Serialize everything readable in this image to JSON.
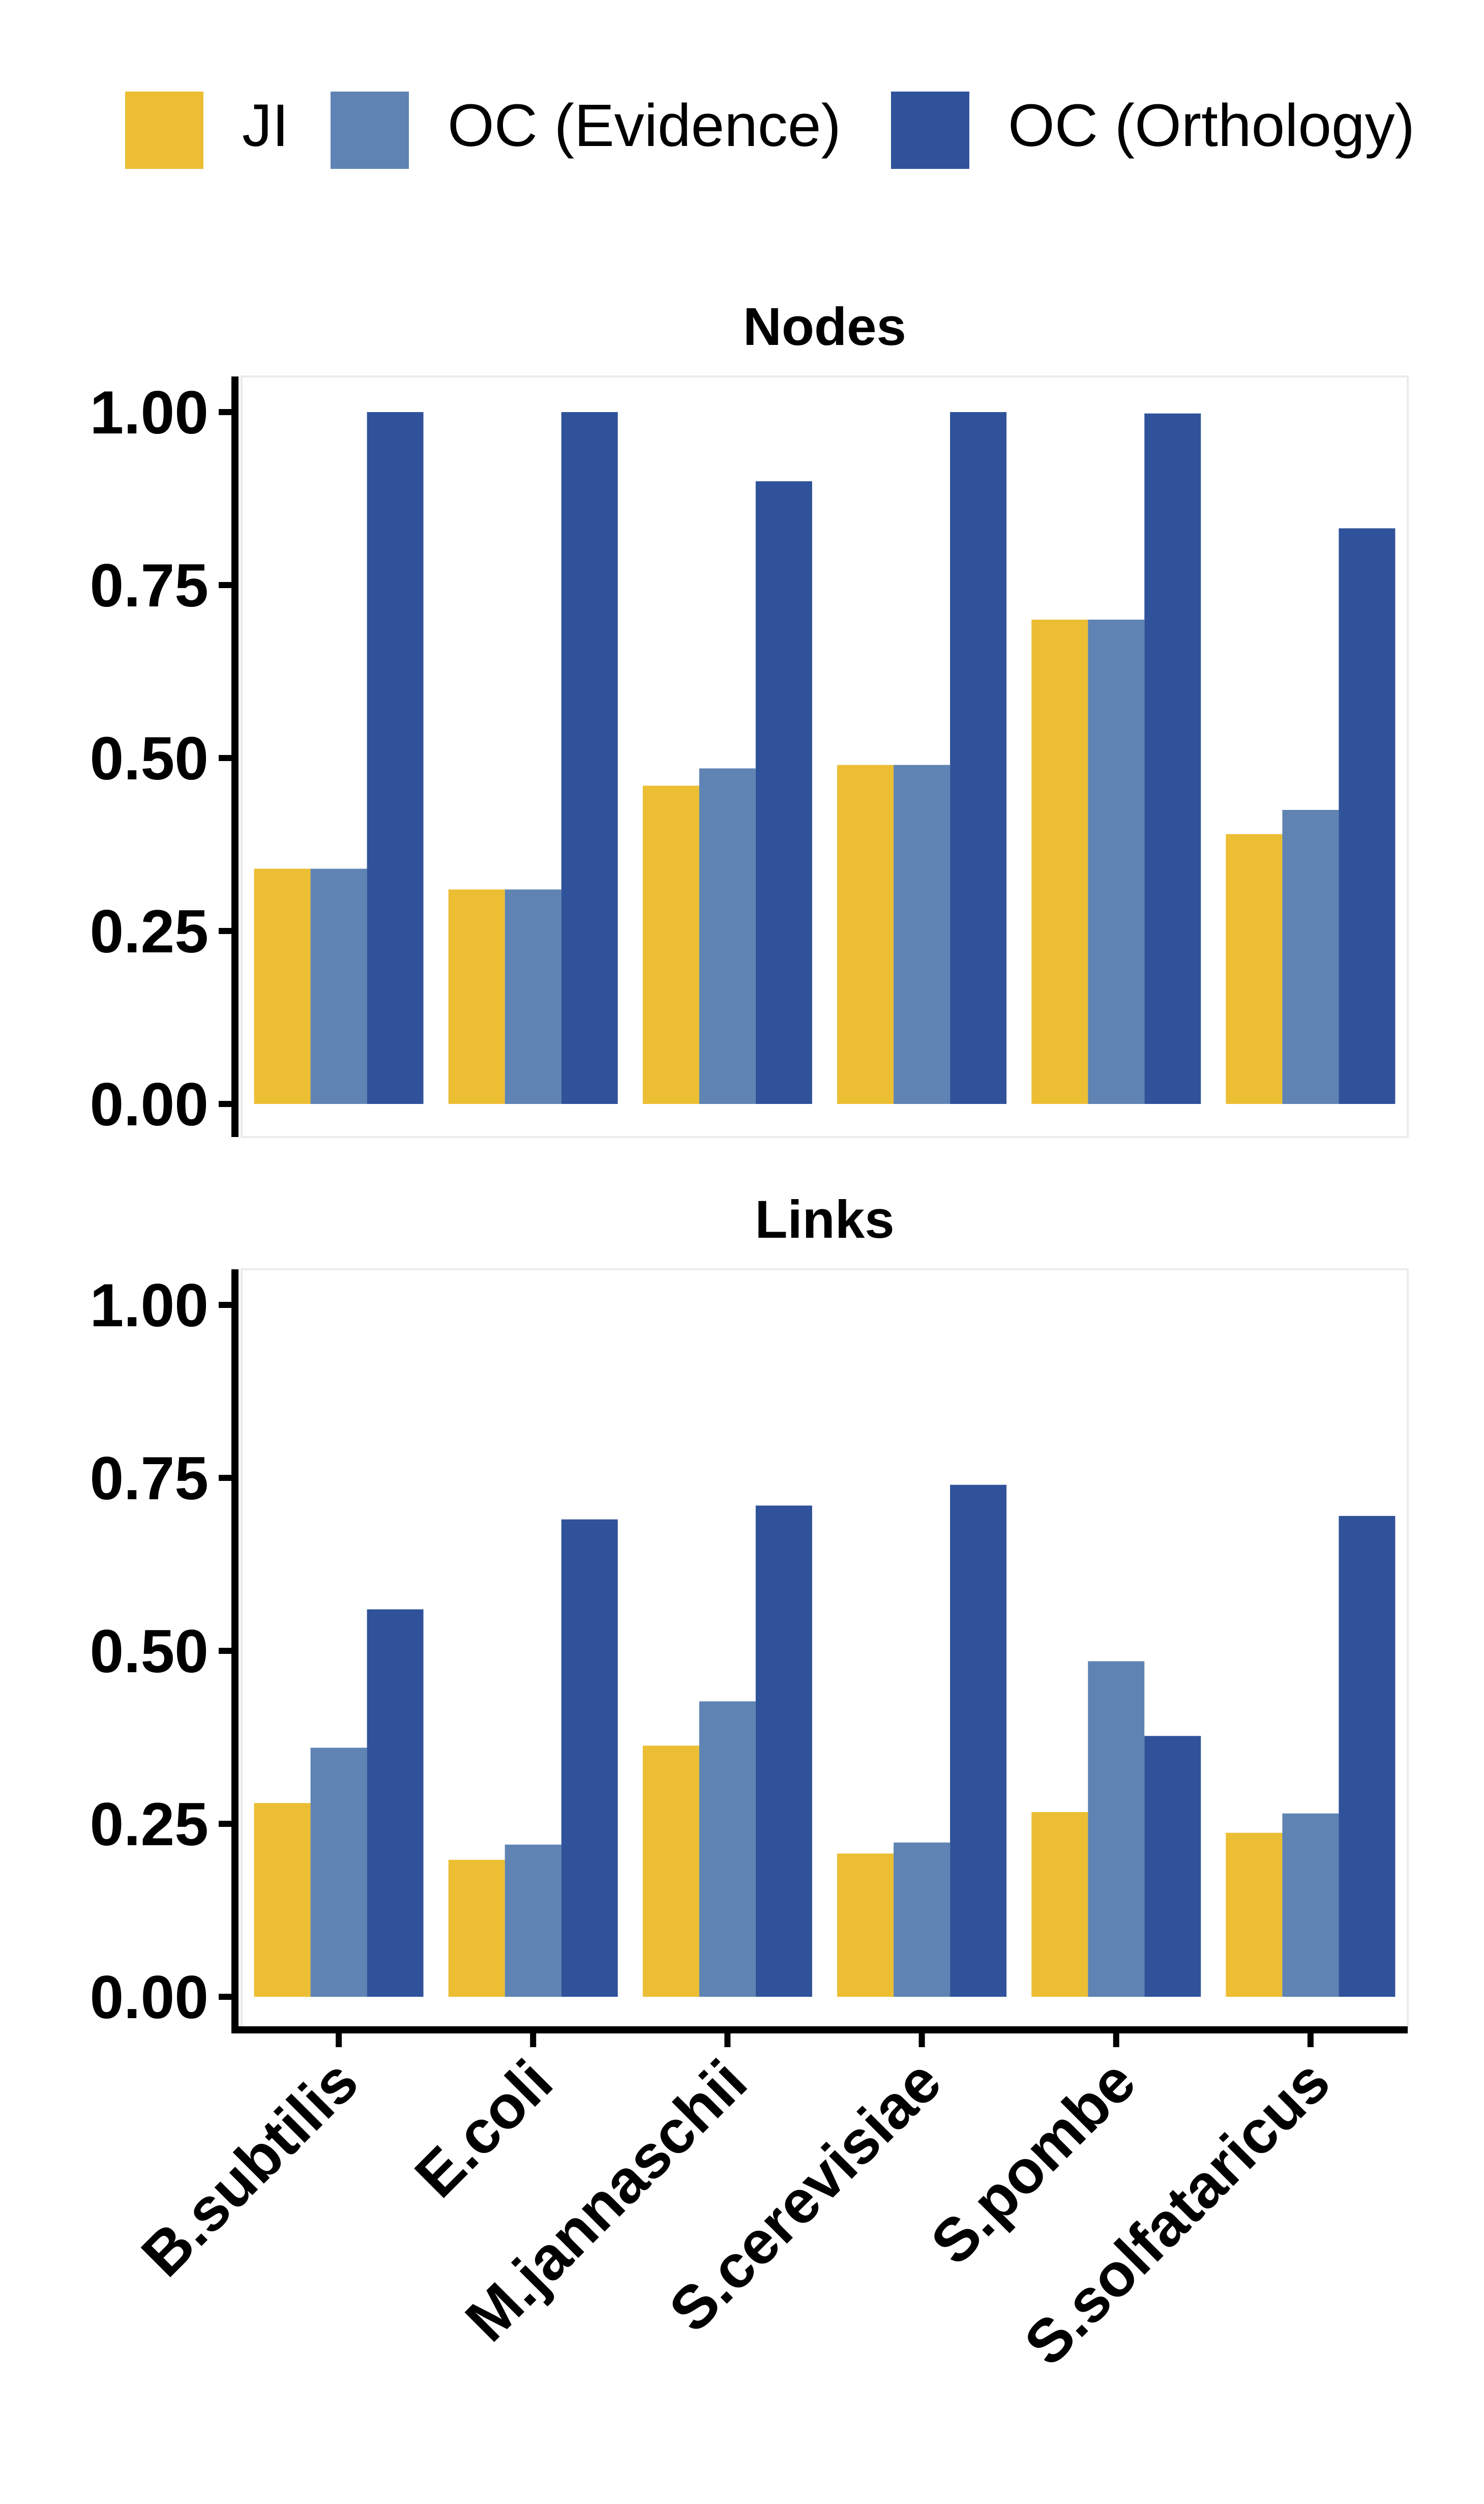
{
  "chart_data": {
    "type": "bar",
    "categories": [
      "B.subtilis",
      "E.coli",
      "M.jannaschii",
      "S.cerevisiae",
      "S.pombe",
      "S.solfataricus"
    ],
    "legend": {
      "position": "top",
      "entries": [
        {
          "name": "JI",
          "color": "#ECBE33"
        },
        {
          "name": "OC (Evidence)",
          "color": "#5F84B3"
        },
        {
          "name": "OC (Orthology)",
          "color": "#30529A"
        }
      ]
    },
    "yticks": [
      "1.00",
      "0.75",
      "0.50",
      "0.25",
      "0.00"
    ],
    "ylim": [
      0,
      1.05
    ],
    "grid": false,
    "panels": [
      {
        "title": "Nodes",
        "series": [
          {
            "name": "JI",
            "values": [
              0.34,
              0.31,
              0.46,
              0.49,
              0.7,
              0.39
            ]
          },
          {
            "name": "OC (Evidence)",
            "values": [
              0.34,
              0.31,
              0.485,
              0.49,
              0.7,
              0.425
            ]
          },
          {
            "name": "OC (Orthology)",
            "values": [
              1.0,
              1.0,
              0.9,
              1.0,
              0.998,
              0.832
            ]
          }
        ]
      },
      {
        "title": "Links",
        "series": [
          {
            "name": "JI",
            "values": [
              0.28,
              0.198,
              0.363,
              0.207,
              0.267,
              0.237
            ]
          },
          {
            "name": "OC (Evidence)",
            "values": [
              0.36,
              0.22,
              0.427,
              0.223,
              0.485,
              0.265
            ]
          },
          {
            "name": "OC (Orthology)",
            "values": [
              0.56,
              0.69,
              0.71,
              0.74,
              0.377,
              0.695
            ]
          }
        ]
      }
    ]
  }
}
